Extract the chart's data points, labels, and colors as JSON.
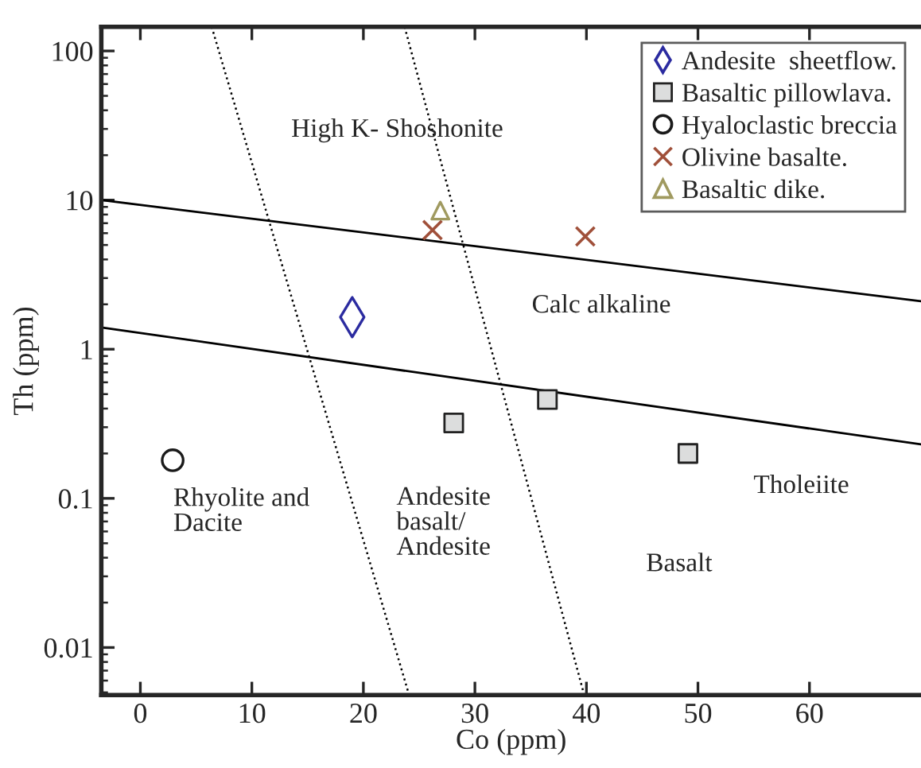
{
  "chart_data": {
    "type": "scatter",
    "xlabel": "Co (ppm)",
    "ylabel": "Th (ppm)",
    "log": "y",
    "xlim": [
      -3.5,
      70
    ],
    "ylim": [
      0.0048,
      145
    ],
    "xticks": [
      0,
      10,
      20,
      30,
      40,
      50,
      60
    ],
    "yticks": [
      0.01,
      0.1,
      1,
      10,
      100
    ],
    "grid": false,
    "legend": "top right",
    "series": [
      {
        "name": "Andesite  sheetflow.",
        "marker": "diamond",
        "color": "#2b2ba0",
        "x": [
          19
        ],
        "values": [
          1.64
        ]
      },
      {
        "name": "Basaltic pillowlava.",
        "marker": "square",
        "color": "#dcdddd",
        "x": [
          28.1,
          36.5,
          49.1
        ],
        "values": [
          0.32,
          0.46,
          0.2
        ]
      },
      {
        "name": "Hyaloclastic breccia",
        "marker": "circle",
        "color": "#1a1a1a",
        "x": [
          2.9
        ],
        "values": [
          0.18
        ]
      },
      {
        "name": "Olivine basalte.",
        "marker": "cross",
        "color": "#a0503a",
        "x": [
          26.2,
          39.9
        ],
        "values": [
          6.3,
          5.7
        ]
      },
      {
        "name": "Basaltic dike.",
        "marker": "triangle",
        "color": "#a09a60",
        "x": [
          26.9
        ],
        "values": [
          8.5
        ]
      },
      {
        "type": "line",
        "line_style": "solid",
        "marker": "none",
        "color": "#000000",
        "x": [
          -3.5,
          70
        ],
        "values": [
          10,
          2.1
        ]
      },
      {
        "type": "line",
        "line_style": "solid",
        "marker": "none",
        "color": "#000000",
        "x": [
          -3.5,
          70
        ],
        "values": [
          1.4,
          0.23
        ]
      },
      {
        "type": "line",
        "line_style": "dotted",
        "marker": "none",
        "color": "#000000",
        "x": [
          6.4,
          24.1
        ],
        "values": [
          145,
          0.0048
        ]
      },
      {
        "type": "line",
        "line_style": "dotted",
        "marker": "none",
        "color": "#000000",
        "x": [
          23.7,
          39.8
        ],
        "values": [
          145,
          0.0048
        ]
      }
    ],
    "annotations": [
      "High K- Shoshonite",
      "Calc alkaline",
      "Rhyolite and\nDacite",
      "Andesite\nbasalt/\nAndesite",
      "Basalt",
      "Tholeiite"
    ]
  }
}
